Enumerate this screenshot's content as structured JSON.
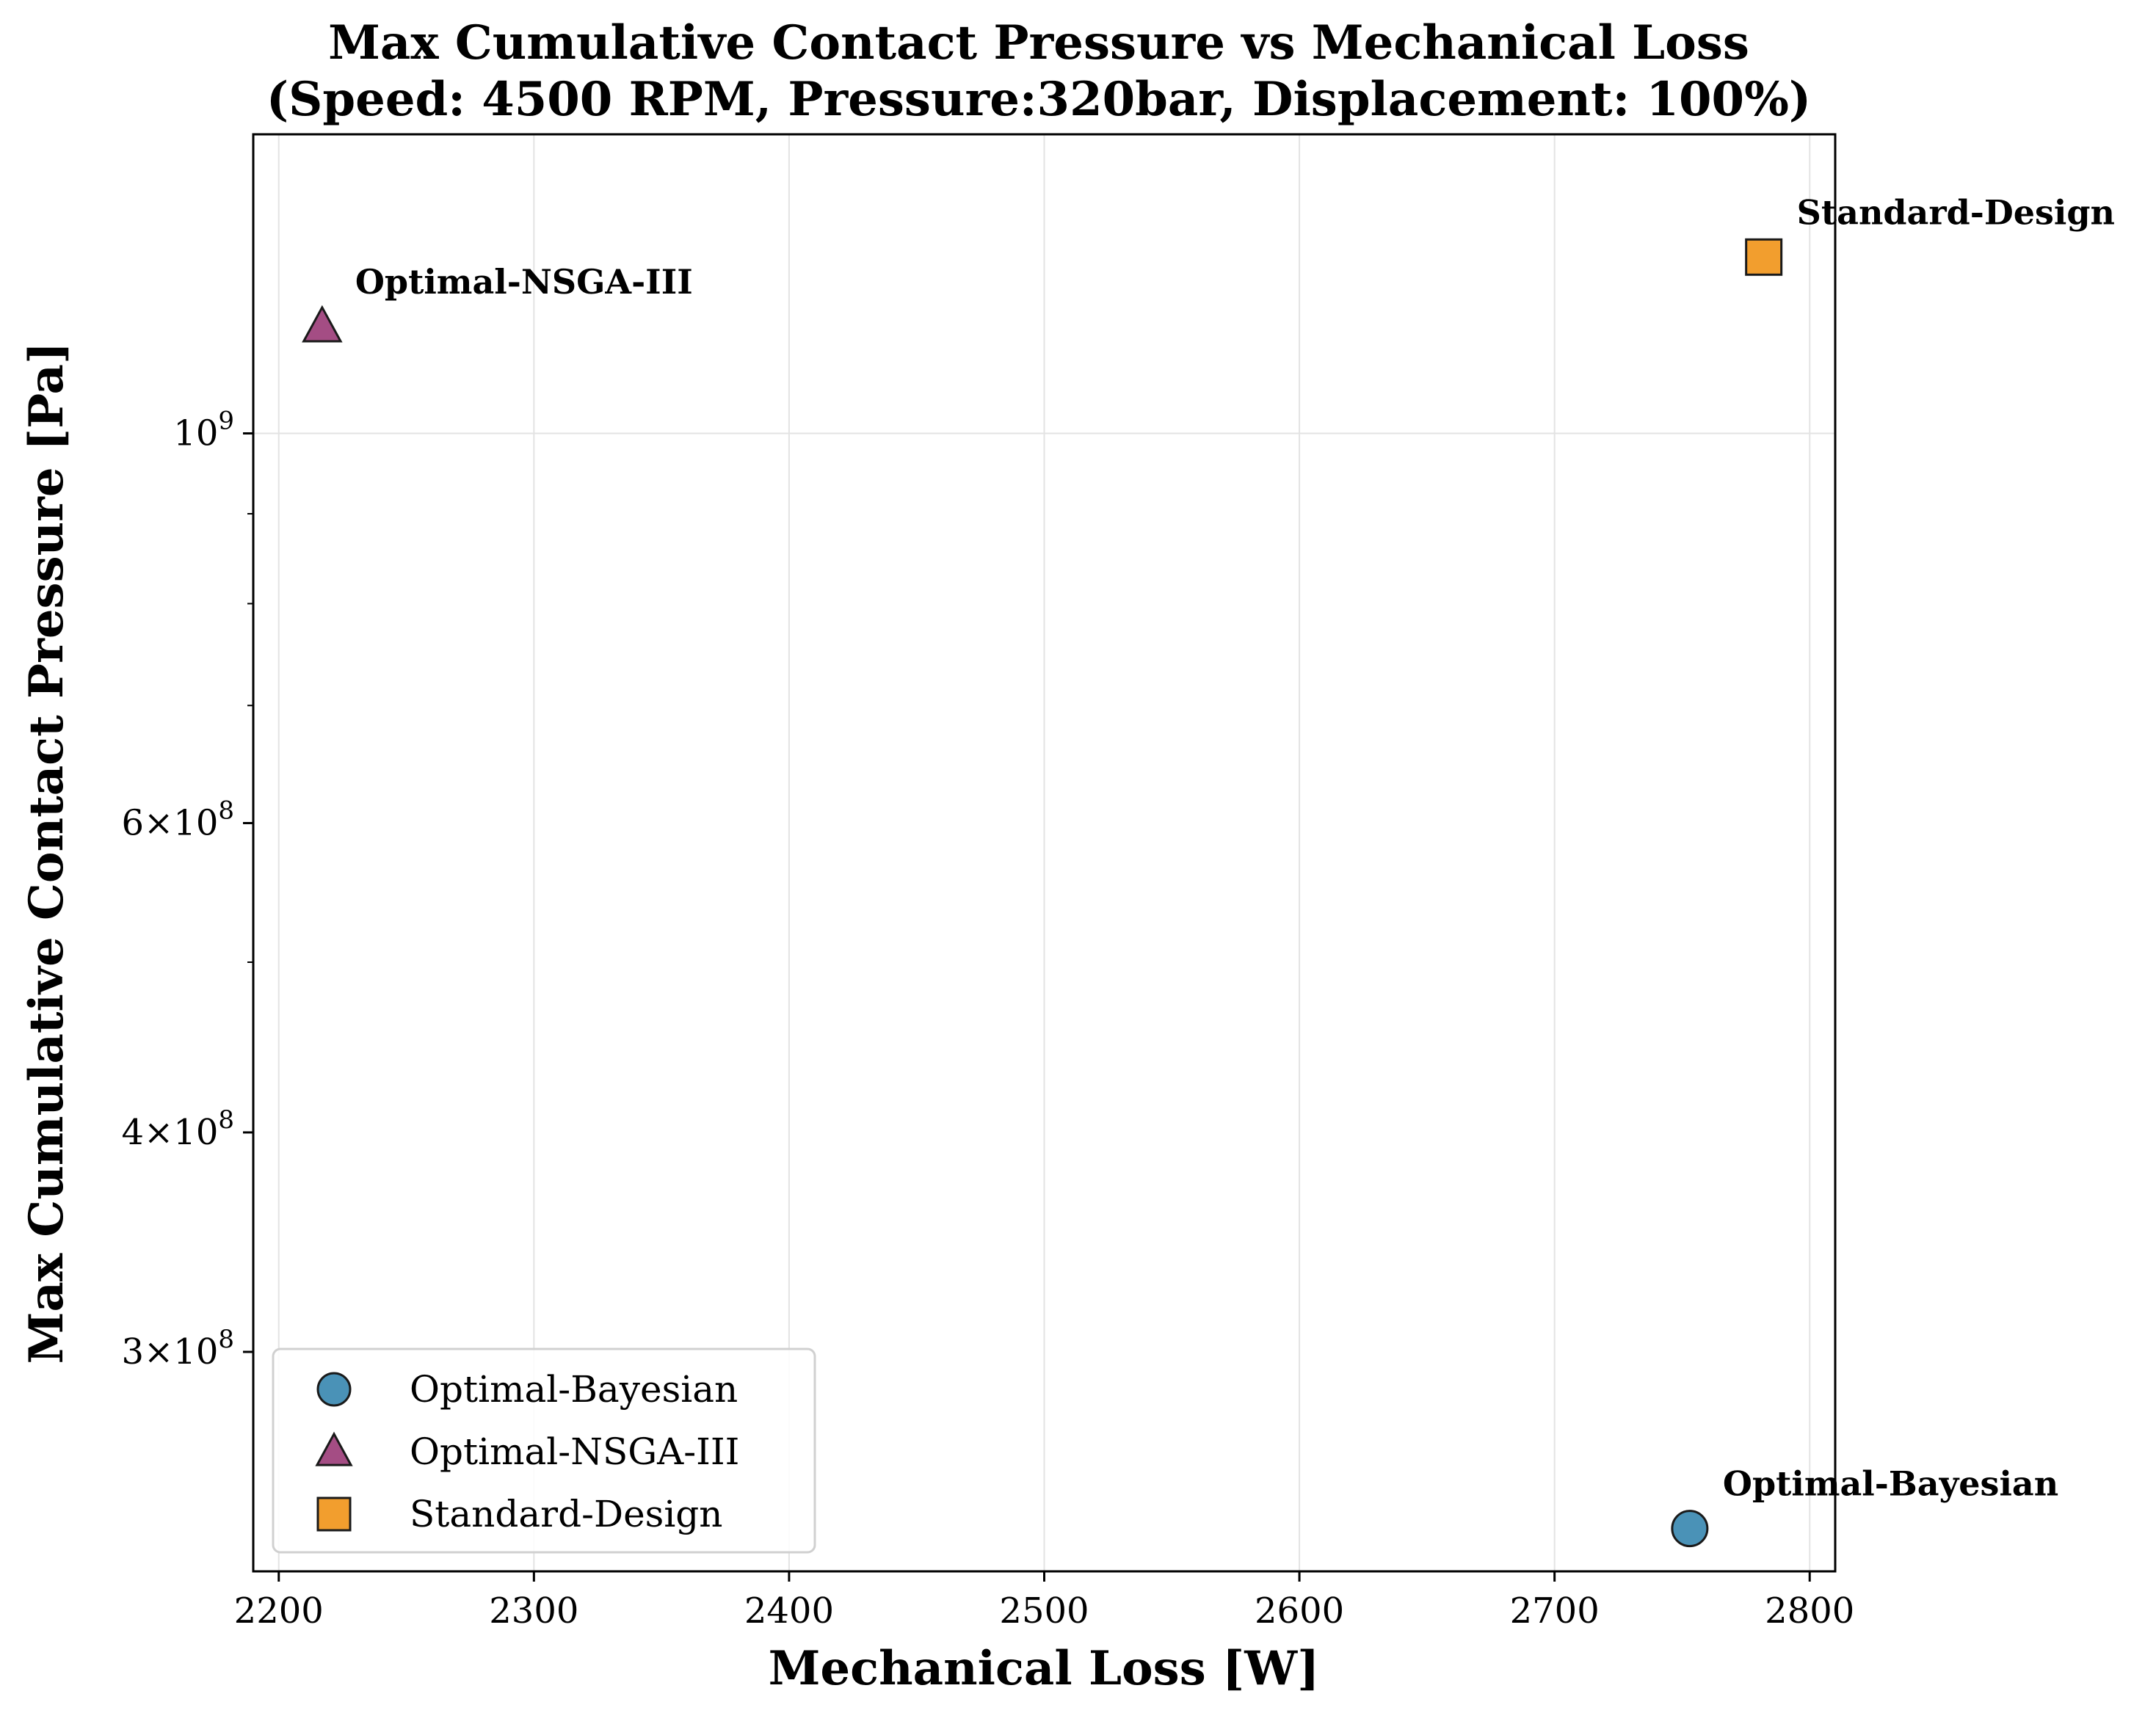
{
  "chart_data": {
    "type": "scatter",
    "title": "Max Cumulative Contact Pressure vs Mechanical Loss",
    "subtitle": "(Speed: 4500 RPM, Pressure:320bar, Displacement: 100%)",
    "xlabel": "Mechanical Loss [W]",
    "ylabel": "Max Cumulative Contact Pressure [Pa]",
    "xlim": [
      2190,
      2810
    ],
    "ylim": [
      225000000,
      1480000000
    ],
    "yscale": "log",
    "grid": true,
    "x_ticks": [
      "2200",
      "2300",
      "2400",
      "2500",
      "2600",
      "2700",
      "2800"
    ],
    "y_ticks": [
      {
        "value": 1000000000,
        "base": "10",
        "exp": "9"
      },
      {
        "value": 600000000,
        "base": "6×10",
        "exp": "8"
      },
      {
        "value": 400000000,
        "base": "4×10",
        "exp": "8"
      },
      {
        "value": 300000000,
        "base": "3×10",
        "exp": "8"
      }
    ],
    "legend_position": "lower-left",
    "series": [
      {
        "name": "Optimal-Bayesian",
        "marker": "circle",
        "color": "#4a92b7",
        "x": 2753,
        "y": 238000000,
        "label": "Optimal-Bayesian"
      },
      {
        "name": "Optimal-NSGA-III",
        "marker": "triangle",
        "color": "#a44d84",
        "x": 2217,
        "y": 1150000000,
        "label": "Optimal-NSGA-III"
      },
      {
        "name": "Standard-Design",
        "marker": "square",
        "color": "#f29e2e",
        "x": 2782,
        "y": 1260000000,
        "label": "Standard-Design"
      }
    ]
  }
}
